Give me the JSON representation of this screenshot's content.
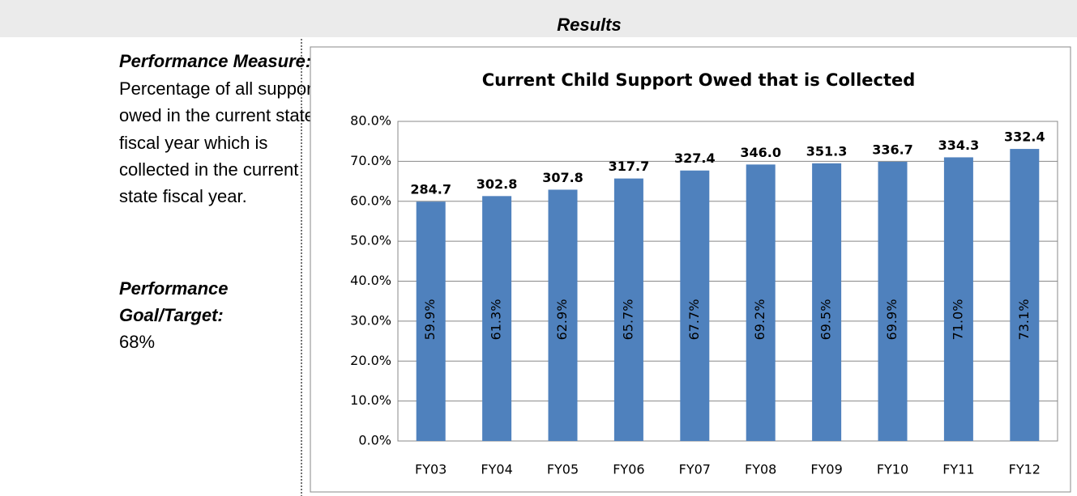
{
  "header": {
    "title": "Results"
  },
  "measure": {
    "label": "Performance Measure:",
    "lines": [
      "Percentage of all support",
      "owed in the current state",
      "fiscal year which is",
      "collected in the current",
      "state fiscal year."
    ]
  },
  "goal": {
    "label_lines": [
      "Performance",
      "Goal/Target:"
    ],
    "value": "68%"
  },
  "chart_data": {
    "type": "bar",
    "title": "Current Child Support Owed that is Collected",
    "categories": [
      "FY03",
      "FY04",
      "FY05",
      "FY06",
      "FY07",
      "FY08",
      "FY09",
      "FY10",
      "FY11",
      "FY12"
    ],
    "values": [
      59.9,
      61.3,
      62.9,
      65.7,
      67.7,
      69.2,
      69.5,
      69.9,
      71.0,
      73.1
    ],
    "value_labels": [
      "59.9%",
      "61.3%",
      "62.9%",
      "65.7%",
      "67.7%",
      "69.2%",
      "69.5%",
      "69.9%",
      "71.0%",
      "73.1%"
    ],
    "annotations": [
      "284.7",
      "302.8",
      "307.8",
      "317.7",
      "327.4",
      "346.0",
      "351.3",
      "336.7",
      "334.3",
      "332.4"
    ],
    "color": "#4f81bd",
    "ylim": [
      0,
      80
    ],
    "yticks": [
      {
        "value": 0,
        "label": "0.0%"
      },
      {
        "value": 10,
        "label": "10.0%"
      },
      {
        "value": 20,
        "label": "20.0%"
      },
      {
        "value": 30,
        "label": "30.0%"
      },
      {
        "value": 40,
        "label": "40.0%"
      },
      {
        "value": 50,
        "label": "50.0%"
      },
      {
        "value": 60,
        "label": "60.0%"
      },
      {
        "value": 70,
        "label": "70.0%"
      },
      {
        "value": 80,
        "label": "80.0%"
      }
    ],
    "grid": true
  }
}
